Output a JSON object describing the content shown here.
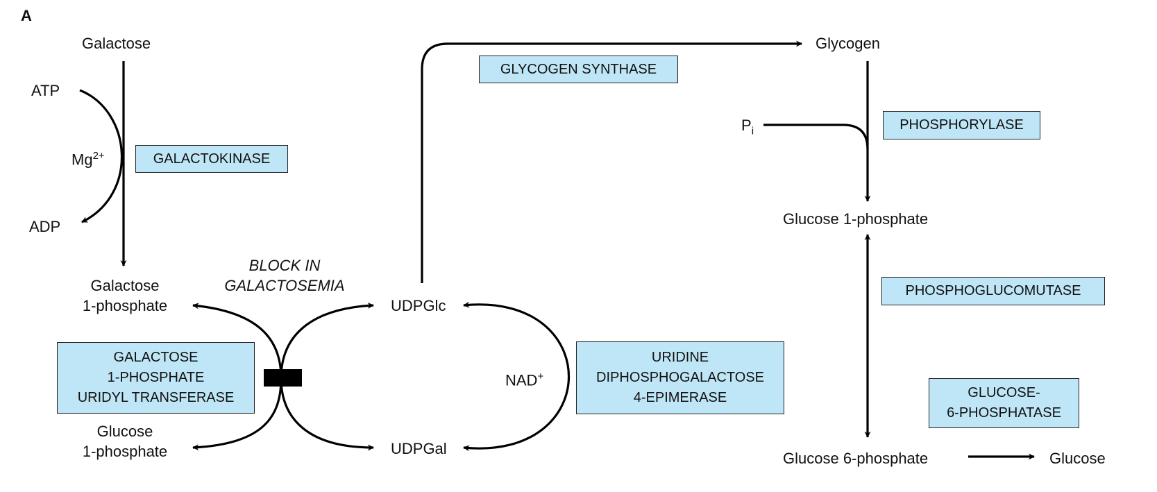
{
  "panel_label": "A",
  "metabolites": {
    "galactose": "Galactose",
    "atp": "ATP",
    "mg": "Mg",
    "mg_charge": "2+",
    "adp": "ADP",
    "gal1p_line1": "Galactose",
    "gal1p_line2": "1-phosphate",
    "glc1p_left_line1": "Glucose",
    "glc1p_left_line2": "1-phosphate",
    "udpglc": "UDPGlc",
    "udpgal": "UDPGal",
    "nad": "NAD",
    "nad_charge": "+",
    "glycogen": "Glycogen",
    "pi": "P",
    "pi_sub": "i",
    "glc1p_right": "Glucose 1-phosphate",
    "glc6p": "Glucose 6-phosphate",
    "glucose": "Glucose"
  },
  "block": {
    "line1": "BLOCK IN",
    "line2": "GALACTOSEMIA"
  },
  "enzymes": {
    "galactokinase": [
      "GALACTOKINASE"
    ],
    "transferase": [
      "GALACTOSE",
      "1-PHOSPHATE",
      "URIDYL TRANSFERASE"
    ],
    "glycogen_synthase": [
      "GLYCOGEN SYNTHASE"
    ],
    "epimerase": [
      "URIDINE",
      "DIPHOSPHOGALACTOSE",
      "4-EPIMERASE"
    ],
    "phosphorylase": [
      "PHOSPHORYLASE"
    ],
    "phosphoglucomutase": [
      "PHOSPHOGLUCOMUTASE"
    ],
    "g6pase": [
      "GLUCOSE-",
      "6-PHOSPHATASE"
    ]
  },
  "colors": {
    "enzyme_box_fill": "#bfe6f6",
    "block_bar": "#000000"
  }
}
